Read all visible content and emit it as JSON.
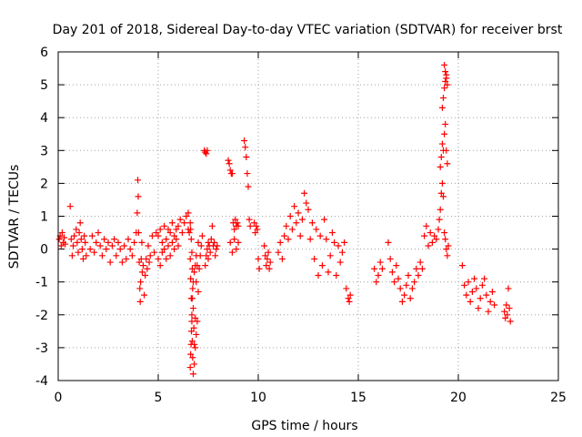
{
  "chart_data": {
    "type": "scatter",
    "title": "Day 201 of 2018, Sidereal Day-to-day VTEC variation (SDTVAR) for receiver brst",
    "xlabel": "GPS time / hours",
    "ylabel": "SDTVAR / TECUs",
    "xlim": [
      0,
      25
    ],
    "ylim": [
      -4,
      6
    ],
    "x_ticks": [
      0,
      5,
      10,
      15,
      20,
      25
    ],
    "y_ticks": [
      -4,
      -3,
      -2,
      -1,
      0,
      1,
      2,
      3,
      4,
      5,
      6
    ],
    "grid": true,
    "marker": "plus",
    "color": "#ff0000",
    "series": [
      {
        "name": "SDTVAR",
        "x": [
          0.05,
          0.1,
          0.15,
          0.2,
          0.25,
          0.3,
          0.35,
          0.6,
          0.65,
          0.7,
          0.75,
          0.8,
          0.9,
          0.95,
          1.0,
          1.05,
          1.1,
          1.15,
          1.2,
          1.25,
          1.3,
          1.35,
          1.4,
          1.6,
          1.7,
          1.8,
          1.9,
          2.0,
          2.1,
          2.2,
          2.3,
          2.4,
          2.5,
          2.6,
          2.7,
          2.8,
          2.9,
          3.0,
          3.1,
          3.2,
          3.3,
          3.4,
          3.5,
          3.6,
          3.7,
          3.8,
          3.9,
          3.95,
          3.98,
          4.0,
          4.02,
          4.05,
          4.08,
          4.1,
          4.12,
          4.15,
          4.18,
          4.2,
          4.25,
          4.3,
          4.35,
          4.4,
          4.45,
          4.5,
          4.55,
          4.6,
          4.7,
          4.8,
          4.9,
          5.0,
          5.1,
          5.2,
          5.3,
          5.4,
          5.5,
          5.6,
          5.7,
          5.8,
          5.9,
          6.0,
          6.1,
          6.2,
          6.3,
          6.4,
          6.5,
          5.0,
          5.1,
          5.2,
          5.3,
          5.4,
          5.5,
          5.6,
          5.7,
          5.8,
          5.9,
          6.0,
          6.5,
          6.55,
          6.6,
          6.62,
          6.65,
          6.68,
          6.7,
          6.72,
          6.75,
          6.8,
          6.85,
          6.9,
          6.95,
          7.0,
          7.05,
          7.1,
          7.15,
          7.2,
          6.6,
          6.62,
          6.64,
          6.66,
          6.68,
          6.7,
          6.75,
          6.8,
          6.85,
          6.9,
          6.6,
          6.62,
          6.65,
          6.68,
          6.7,
          6.72,
          6.75,
          6.78,
          6.8,
          6.85,
          6.9,
          6.95,
          7.0,
          7.3,
          7.35,
          7.4,
          7.45,
          7.5,
          7.55,
          7.6,
          7.65,
          7.7,
          7.75,
          7.8,
          7.85,
          7.9,
          7.95,
          7.35,
          7.4,
          7.45,
          7.5,
          8.5,
          8.55,
          8.6,
          8.65,
          8.7,
          8.75,
          8.8,
          8.85,
          8.9,
          8.95,
          9.0,
          8.6,
          8.7,
          8.8,
          8.9,
          9.0,
          9.3,
          9.35,
          9.4,
          9.45,
          9.5,
          9.55,
          9.6,
          9.8,
          9.85,
          9.9,
          9.95,
          10.0,
          10.05,
          10.3,
          10.35,
          10.4,
          10.45,
          10.5,
          10.55,
          10.6,
          11.0,
          11.1,
          11.2,
          11.3,
          11.4,
          11.5,
          11.6,
          11.7,
          11.8,
          11.9,
          12.0,
          12.1,
          12.2,
          12.3,
          12.4,
          12.5,
          12.6,
          12.7,
          12.8,
          12.9,
          13.0,
          13.1,
          13.2,
          13.3,
          13.4,
          13.5,
          13.6,
          13.7,
          13.8,
          13.9,
          14.0,
          14.1,
          14.2,
          14.3,
          14.4,
          14.5,
          14.55,
          14.6,
          15.8,
          15.9,
          16.0,
          16.1,
          16.2,
          16.5,
          16.6,
          16.7,
          16.8,
          16.9,
          17.0,
          17.1,
          17.2,
          17.3,
          17.4,
          17.5,
          17.6,
          17.7,
          17.8,
          17.9,
          18.0,
          18.1,
          18.2,
          18.3,
          18.4,
          18.5,
          18.6,
          18.7,
          18.8,
          18.9,
          19.0,
          19.05,
          19.1,
          19.15,
          19.2,
          19.25,
          19.3,
          19.35,
          19.4,
          19.45,
          19.5,
          19.1,
          19.15,
          19.2,
          19.25,
          19.3,
          19.35,
          19.4,
          19.45,
          19.2,
          19.25,
          19.3,
          19.35,
          19.4,
          19.3,
          19.35,
          19.4,
          19.45,
          20.2,
          20.3,
          20.4,
          20.5,
          20.6,
          20.7,
          20.8,
          20.9,
          21.0,
          21.1,
          21.2,
          21.3,
          21.4,
          21.5,
          21.6,
          21.7,
          21.8,
          22.3,
          22.35,
          22.4,
          22.45,
          22.5,
          22.55,
          22.6
        ],
        "y": [
          0.3,
          0.4,
          0.1,
          0.5,
          0.2,
          0.35,
          0.15,
          1.3,
          0.3,
          -0.2,
          0.1,
          0.4,
          0.6,
          0.2,
          -0.1,
          0.5,
          0.8,
          0.3,
          0.0,
          -0.3,
          0.4,
          0.2,
          -0.2,
          0.0,
          0.4,
          -0.1,
          0.2,
          0.5,
          0.1,
          -0.2,
          0.3,
          0.0,
          0.2,
          -0.4,
          0.1,
          0.3,
          -0.2,
          0.2,
          0.0,
          -0.4,
          0.1,
          -0.3,
          0.3,
          0.0,
          -0.2,
          0.2,
          0.5,
          1.1,
          2.1,
          1.6,
          0.5,
          -0.4,
          -1.2,
          -1.6,
          -1.0,
          -0.3,
          0.2,
          -0.7,
          -0.5,
          -1.4,
          -0.8,
          -0.3,
          -0.6,
          0.1,
          -0.4,
          -0.2,
          0.4,
          -0.1,
          0.5,
          0.4,
          0.6,
          0.2,
          0.7,
          0.3,
          0.6,
          0.5,
          0.8,
          0.4,
          0.6,
          0.7,
          0.9,
          0.5,
          0.8,
          1.0,
          0.6,
          -0.3,
          -0.5,
          -0.1,
          0.0,
          -0.3,
          0.1,
          -0.2,
          0.2,
          0.0,
          0.3,
          0.1,
          1.1,
          0.5,
          -0.3,
          -0.9,
          -1.5,
          -2.2,
          -2.8,
          -3.3,
          -3.8,
          -3.5,
          -3.0,
          -2.6,
          -2.2,
          -1.3,
          -0.6,
          -0.2,
          0.1,
          0.4,
          -3.6,
          -3.2,
          -2.9,
          -2.5,
          -2.0,
          -1.5,
          -1.0,
          -0.7,
          -0.5,
          -0.2,
          0.8,
          0.6,
          0.3,
          -0.1,
          -0.6,
          -1.2,
          -1.8,
          -2.4,
          -2.9,
          -2.1,
          -1.0,
          -0.5,
          0.2,
          3.0,
          2.95,
          2.9,
          3.0,
          0.2,
          0.1,
          -0.1,
          0.3,
          0.7,
          0.1,
          0.2,
          -0.2,
          0.0,
          0.1,
          -0.5,
          -0.2,
          0.0,
          -0.3,
          2.7,
          2.6,
          2.4,
          2.3,
          2.3,
          0.8,
          0.6,
          0.9,
          0.7,
          0.8,
          0.7,
          0.2,
          -0.1,
          0.3,
          0.0,
          0.2,
          3.3,
          3.1,
          2.8,
          2.3,
          1.9,
          0.9,
          0.7,
          0.8,
          0.5,
          0.7,
          0.6,
          -0.3,
          -0.6,
          0.1,
          -0.2,
          -0.5,
          -0.3,
          -0.1,
          -0.6,
          -0.4,
          -0.1,
          0.2,
          -0.3,
          0.4,
          0.7,
          0.3,
          1.0,
          0.6,
          1.3,
          0.8,
          1.1,
          0.4,
          0.9,
          1.7,
          1.4,
          1.2,
          0.3,
          0.8,
          -0.3,
          0.6,
          -0.8,
          0.4,
          -0.5,
          0.9,
          0.3,
          -0.7,
          -0.2,
          0.5,
          0.2,
          -0.8,
          0.1,
          -0.4,
          -0.1,
          0.2,
          -1.2,
          -1.5,
          -1.6,
          -1.4,
          -0.6,
          -1.0,
          -0.8,
          -0.4,
          -0.6,
          0.2,
          -0.3,
          -0.7,
          -1.0,
          -0.5,
          -0.9,
          -1.2,
          -1.6,
          -1.4,
          -1.1,
          -0.8,
          -1.5,
          -1.2,
          -1.0,
          -0.6,
          -0.8,
          -0.4,
          -0.6,
          0.4,
          0.7,
          0.1,
          0.5,
          0.2,
          0.4,
          0.3,
          0.6,
          0.9,
          1.2,
          1.7,
          2.0,
          1.6,
          0.5,
          0.3,
          0.0,
          -0.2,
          0.1,
          2.5,
          2.8,
          3.2,
          3.0,
          3.5,
          3.8,
          3.0,
          2.6,
          4.3,
          4.6,
          4.9,
          5.1,
          5.3,
          5.6,
          5.4,
          5.2,
          5.0,
          -0.5,
          -1.1,
          -1.4,
          -1.0,
          -1.6,
          -1.3,
          -0.9,
          -1.2,
          -1.8,
          -1.5,
          -1.1,
          -0.9,
          -1.4,
          -1.9,
          -1.6,
          -1.3,
          -1.7,
          -1.9,
          -2.1,
          -1.7,
          -2.0,
          -1.2,
          -1.8,
          -2.2
        ]
      }
    ]
  }
}
